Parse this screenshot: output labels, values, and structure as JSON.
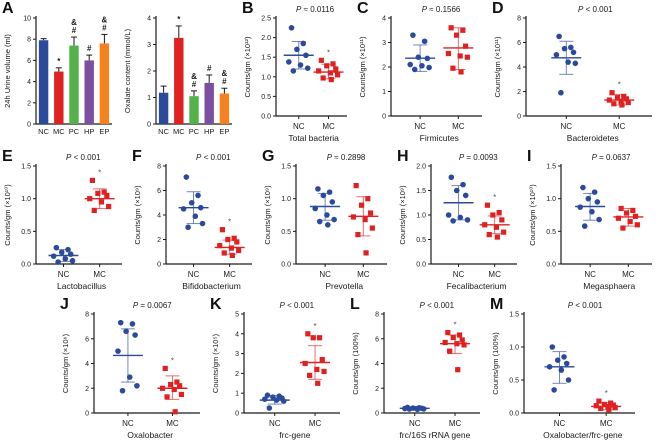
{
  "figure": {
    "background": "#ffffff"
  },
  "colors": {
    "nc_blue": "#2b4a9b",
    "mc_red": "#df2121",
    "pc_green": "#55b14a",
    "hp_purple": "#7c4fa0",
    "ep_orange": "#f5821f",
    "axis": "#1a1a1a"
  },
  "chart_data": [
    {
      "panel": "A",
      "row": 1,
      "type": "bar",
      "ylabel": "24h Urine volume (ml)",
      "ylim": [
        0,
        10
      ],
      "yticks": [
        "0",
        "2",
        "4",
        "6",
        "8",
        "10"
      ],
      "categories": [
        "NC",
        "MC",
        "PC",
        "HP",
        "EP"
      ],
      "values": [
        7.9,
        4.95,
        7.4,
        6.0,
        7.6
      ],
      "errors": [
        0.15,
        0.35,
        0.8,
        0.5,
        0.85
      ],
      "annotations": [
        "",
        "*",
        "&|#",
        "#",
        "&|#"
      ],
      "bar_colors": [
        "#2b4a9b",
        "#df2121",
        "#55b14a",
        "#7c4fa0",
        "#f5821f"
      ]
    },
    {
      "panel": "",
      "row": 1,
      "type": "bar",
      "ylabel": "Oxalate content (mmol/L)",
      "ylim": [
        0,
        4
      ],
      "yticks": [
        "0",
        "1",
        "2",
        "3",
        "4"
      ],
      "categories": [
        "NC",
        "MC",
        "PC",
        "HP",
        "EP"
      ],
      "values": [
        1.18,
        3.25,
        1.05,
        1.55,
        1.15
      ],
      "errors": [
        0.25,
        0.45,
        0.2,
        0.3,
        0.2
      ],
      "annotations": [
        "",
        "*",
        "&|#",
        "#",
        "&|#"
      ],
      "bar_colors": [
        "#2b4a9b",
        "#df2121",
        "#55b14a",
        "#7c4fa0",
        "#f5821f"
      ]
    },
    {
      "panel": "B",
      "row": 1,
      "type": "scatter",
      "pvalue": "P ≈ 0.0116",
      "ylabel": "Counts/gm (×10¹²)",
      "ylim": [
        0,
        2.5
      ],
      "yticks": [
        "0.0",
        "0.5",
        "1.0",
        "1.5",
        "2.0",
        "2.5"
      ],
      "xlabel": "Total bacteria",
      "groups": [
        {
          "label": "NC",
          "marker": "circle",
          "color": "#2b4a9b",
          "mean": 1.55,
          "whisker": [
            1.2,
            1.9
          ],
          "star": false,
          "points": [
            2.25,
            1.85,
            1.7,
            1.55,
            1.38,
            1.3,
            1.22,
            1.15
          ]
        },
        {
          "label": "MC",
          "marker": "square",
          "color": "#df2121",
          "mean": 1.12,
          "whisker": [
            0.95,
            1.32
          ],
          "star": true,
          "points": [
            1.42,
            1.33,
            1.28,
            1.2,
            1.15,
            1.1,
            1.05,
            0.97,
            0.93
          ]
        }
      ]
    },
    {
      "panel": "C",
      "row": 1,
      "type": "scatter",
      "pvalue": "P ≈ 0.1566",
      "ylabel": "Counts/gm (×10¹¹)",
      "ylim": [
        0,
        4
      ],
      "yticks": [
        "0",
        "1",
        "2",
        "3",
        "4"
      ],
      "xlabel": "Firmicutes",
      "groups": [
        {
          "label": "NC",
          "marker": "circle",
          "color": "#2b4a9b",
          "mean": 2.36,
          "whisker": [
            1.82,
            2.9
          ],
          "star": false,
          "points": [
            3.3,
            3.05,
            2.4,
            2.35,
            2.1,
            2.05,
            1.98,
            1.9
          ]
        },
        {
          "label": "MC",
          "marker": "square",
          "color": "#df2121",
          "mean": 2.78,
          "whisker": [
            1.9,
            3.6
          ],
          "star": false,
          "points": [
            3.6,
            3.5,
            3.3,
            2.85,
            2.55,
            2.45,
            2.4,
            1.95,
            1.8
          ]
        }
      ]
    },
    {
      "panel": "D",
      "row": 1,
      "type": "scatter",
      "pvalue": "P < 0.001",
      "ylabel": "Counts/gm (×10¹¹)",
      "ylim": [
        0,
        8
      ],
      "yticks": [
        "0",
        "2",
        "4",
        "6",
        "8"
      ],
      "xlabel": "Bacteroidetes",
      "groups": [
        {
          "label": "NC",
          "marker": "circle",
          "color": "#2b4a9b",
          "mean": 4.75,
          "whisker": [
            3.4,
            6.1
          ],
          "star": false,
          "points": [
            6.5,
            5.6,
            5.5,
            5.2,
            5.0,
            4.4,
            4.3,
            1.9
          ]
        },
        {
          "label": "MC",
          "marker": "square",
          "color": "#df2121",
          "mean": 1.3,
          "whisker": [
            0.9,
            1.75
          ],
          "star": true,
          "points": [
            1.9,
            1.6,
            1.5,
            1.4,
            1.3,
            1.2,
            1.1,
            1.0,
            0.9
          ]
        }
      ]
    },
    {
      "panel": "E",
      "row": 2,
      "type": "scatter",
      "pvalue": "P < 0.001",
      "ylabel": "Counts/gm (×10¹⁰)",
      "ylim": [
        0,
        1.5
      ],
      "yticks": [
        "0.0",
        "0.5",
        "1.0",
        "1.5"
      ],
      "xlabel": "Lactobacillus",
      "groups": [
        {
          "label": "NC",
          "marker": "circle",
          "color": "#2b4a9b",
          "mean": 0.13,
          "whisker": [
            0.04,
            0.22
          ],
          "star": false,
          "points": [
            0.25,
            0.22,
            0.18,
            0.15,
            0.12,
            0.08,
            0.05,
            0.03
          ]
        },
        {
          "label": "MC",
          "marker": "square",
          "color": "#df2121",
          "mean": 1.0,
          "whisker": [
            0.85,
            1.15
          ],
          "star": true,
          "points": [
            1.28,
            1.1,
            1.08,
            1.05,
            1.0,
            0.95,
            0.88,
            0.82
          ]
        }
      ]
    },
    {
      "panel": "F",
      "row": 2,
      "type": "scatter",
      "pvalue": "P < 0.001",
      "ylabel": "Counts/gm (×10⁹)",
      "ylim": [
        0,
        8
      ],
      "yticks": [
        "0",
        "2",
        "4",
        "6",
        "8"
      ],
      "xlabel": "Bifidobacterium",
      "groups": [
        {
          "label": "NC",
          "marker": "circle",
          "color": "#2b4a9b",
          "mean": 4.6,
          "whisker": [
            3.3,
            5.9
          ],
          "star": false,
          "points": [
            7.1,
            5.6,
            5.0,
            4.6,
            4.5,
            3.9,
            3.3,
            3.0
          ]
        },
        {
          "label": "MC",
          "marker": "square",
          "color": "#df2121",
          "mean": 1.35,
          "whisker": [
            0.8,
            1.95
          ],
          "star": true,
          "points": [
            2.8,
            2.1,
            2.0,
            1.8,
            1.5,
            1.3,
            1.1,
            0.9,
            0.7
          ]
        }
      ]
    },
    {
      "panel": "G",
      "row": 2,
      "type": "scatter",
      "pvalue": "P ≈ 0.2898",
      "ylabel": "Counts/gm (×10⁹)",
      "ylim": [
        0,
        1.5
      ],
      "yticks": [
        "0.0",
        "0.5",
        "1.0",
        "1.5"
      ],
      "xlabel": "Prevotella",
      "groups": [
        {
          "label": "NC",
          "marker": "circle",
          "color": "#2b4a9b",
          "mean": 0.88,
          "whisker": [
            0.67,
            1.08
          ],
          "star": false,
          "points": [
            1.15,
            1.1,
            1.05,
            0.95,
            0.85,
            0.75,
            0.68,
            0.65,
            0.6
          ]
        },
        {
          "label": "MC",
          "marker": "square",
          "color": "#df2121",
          "mean": 0.73,
          "whisker": [
            0.43,
            1.03
          ],
          "star": false,
          "points": [
            1.2,
            1.0,
            0.9,
            0.78,
            0.72,
            0.68,
            0.55,
            0.45,
            0.17
          ]
        }
      ]
    },
    {
      "panel": "H",
      "row": 2,
      "type": "scatter",
      "pvalue": "P = 0.0093",
      "ylabel": "Counts/gm (×10⁹)",
      "ylim": [
        0,
        2
      ],
      "yticks": [
        "0.0",
        "0.5",
        "1.0",
        "1.5",
        "2.0"
      ],
      "xlabel": "Fecalibacterium",
      "groups": [
        {
          "label": "NC",
          "marker": "circle",
          "color": "#2b4a9b",
          "mean": 1.25,
          "whisker": [
            0.9,
            1.6
          ],
          "star": false,
          "points": [
            1.77,
            1.62,
            1.5,
            1.4,
            1.0,
            0.95,
            0.9,
            0.88
          ]
        },
        {
          "label": "MC",
          "marker": "square",
          "color": "#df2121",
          "mean": 0.8,
          "whisker": [
            0.62,
            0.98
          ],
          "star": true,
          "points": [
            1.2,
            1.05,
            1.0,
            0.9,
            0.8,
            0.75,
            0.65,
            0.6,
            0.55
          ]
        }
      ]
    },
    {
      "panel": "I",
      "row": 2,
      "type": "scatter",
      "pvalue": "P = 0.0637",
      "ylabel": "Counts/gm (×10¹⁰)",
      "ylim": [
        0,
        1.5
      ],
      "yticks": [
        "0.0",
        "0.5",
        "1.0",
        "1.5"
      ],
      "xlabel": "Megasphaera",
      "groups": [
        {
          "label": "NC",
          "marker": "circle",
          "color": "#2b4a9b",
          "mean": 0.88,
          "whisker": [
            0.67,
            1.08
          ],
          "star": false,
          "points": [
            1.17,
            1.1,
            1.0,
            0.95,
            0.87,
            0.8,
            0.68,
            0.58
          ]
        },
        {
          "label": "MC",
          "marker": "square",
          "color": "#df2121",
          "mean": 0.72,
          "whisker": [
            0.58,
            0.85
          ],
          "star": false,
          "points": [
            0.85,
            0.82,
            0.78,
            0.73,
            0.7,
            0.65,
            0.6,
            0.55
          ]
        }
      ]
    },
    {
      "panel": "J",
      "row": 3,
      "type": "scatter",
      "pvalue": "P = 0.0067",
      "ylabel": "Counts/gm (×10⁶)",
      "ylim": [
        0,
        8
      ],
      "yticks": [
        "0",
        "2",
        "4",
        "6",
        "8"
      ],
      "xlabel": "Oxalobacter",
      "groups": [
        {
          "label": "NC",
          "marker": "circle",
          "color": "#2b4a9b",
          "mean": 4.65,
          "whisker": [
            2.5,
            6.8
          ],
          "star": false,
          "points": [
            7.3,
            7.2,
            6.6,
            6.3,
            5.0,
            2.9,
            2.2,
            1.8
          ]
        },
        {
          "label": "MC",
          "marker": "square",
          "color": "#df2121",
          "mean": 2.0,
          "whisker": [
            1.1,
            3.0
          ],
          "star": true,
          "points": [
            3.6,
            2.5,
            2.3,
            2.2,
            2.0,
            1.9,
            1.5,
            1.3,
            0.1
          ]
        }
      ]
    },
    {
      "panel": "K",
      "row": 3,
      "type": "scatter",
      "pvalue": "P < 0.001",
      "ylabel": "Counts/gm (×10⁵)",
      "ylim": [
        0,
        5
      ],
      "yticks": [
        "0",
        "1",
        "2",
        "3",
        "4",
        "5"
      ],
      "xlabel": "frc-gene",
      "groups": [
        {
          "label": "NC",
          "marker": "circle",
          "color": "#2b4a9b",
          "mean": 0.65,
          "whisker": [
            0.45,
            0.88
          ],
          "star": false,
          "points": [
            0.9,
            0.85,
            0.8,
            0.75,
            0.7,
            0.65,
            0.6,
            0.25
          ]
        },
        {
          "label": "MC",
          "marker": "square",
          "color": "#df2121",
          "mean": 2.55,
          "whisker": [
            1.7,
            3.4
          ],
          "star": true,
          "points": [
            4.0,
            3.8,
            3.8,
            2.7,
            2.5,
            2.2,
            2.1,
            1.9,
            1.5
          ]
        }
      ]
    },
    {
      "panel": "L",
      "row": 3,
      "type": "scatter",
      "pvalue": "P < 0.001",
      "ylabel": "Counts/gm (100%)",
      "ylim": [
        0,
        8
      ],
      "yticks": [
        "0",
        "2",
        "4",
        "6",
        "8"
      ],
      "xlabel": "frc/16S rRNA gene",
      "groups": [
        {
          "label": "NC",
          "marker": "circle",
          "color": "#2b4a9b",
          "mean": 0.38,
          "whisker": [
            0.3,
            0.46
          ],
          "star": false,
          "points": [
            0.45,
            0.42,
            0.4,
            0.38,
            0.36,
            0.35,
            0.33,
            0.32,
            0.3
          ]
        },
        {
          "label": "MC",
          "marker": "square",
          "color": "#df2121",
          "mean": 5.6,
          "whisker": [
            4.8,
            6.3
          ],
          "star": true,
          "points": [
            6.5,
            6.3,
            6.1,
            5.9,
            5.7,
            5.6,
            5.5,
            5.0,
            3.5
          ]
        }
      ]
    },
    {
      "panel": "M",
      "row": 3,
      "type": "scatter",
      "pvalue": "P < 0.001",
      "ylabel": "Counts/gm (100%)",
      "ylim": [
        0,
        1.5
      ],
      "yticks": [
        "0.0",
        "0.5",
        "1.0",
        "1.5"
      ],
      "xlabel": "Oxalobacter/frc-gene",
      "groups": [
        {
          "label": "NC",
          "marker": "circle",
          "color": "#2b4a9b",
          "mean": 0.7,
          "whisker": [
            0.45,
            0.93
          ],
          "star": false,
          "points": [
            1.0,
            0.85,
            0.8,
            0.75,
            0.7,
            0.65,
            0.5,
            0.35
          ]
        },
        {
          "label": "MC",
          "marker": "square",
          "color": "#df2121",
          "mean": 0.1,
          "whisker": [
            0.05,
            0.16
          ],
          "star": true,
          "points": [
            0.18,
            0.15,
            0.13,
            0.12,
            0.11,
            0.1,
            0.08,
            0.07,
            0.05
          ]
        }
      ]
    }
  ]
}
